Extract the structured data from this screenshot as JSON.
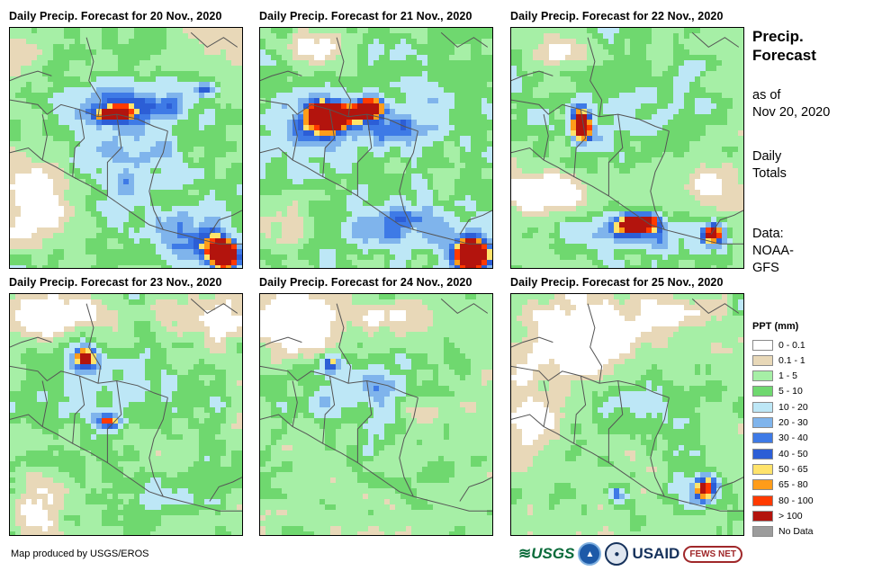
{
  "panels": [
    {
      "title": "Daily Precip. Forecast for 20 Nov., 2020"
    },
    {
      "title": "Daily Precip. Forecast for 21 Nov., 2020"
    },
    {
      "title": "Daily Precip. Forecast for 22 Nov., 2020"
    },
    {
      "title": "Daily Precip. Forecast for 23 Nov., 2020"
    },
    {
      "title": "Daily Precip. Forecast for 24 Nov., 2020"
    },
    {
      "title": "Daily Precip. Forecast for 25 Nov., 2020"
    }
  ],
  "sidebar": {
    "title_line1": "Precip.",
    "title_line2": "Forecast",
    "asof_line1": "as of",
    "asof_line2": "Nov 20, 2020",
    "daily_line1": "Daily",
    "daily_line2": "Totals",
    "data_line1": "Data:",
    "data_line2": "NOAA-",
    "data_line3": "GFS"
  },
  "legend": {
    "title": "PPT (mm)",
    "items": [
      {
        "label": "0 - 0.1",
        "color": "#ffffff"
      },
      {
        "label": "0.1 - 1",
        "color": "#e8d8b8"
      },
      {
        "label": "1 - 5",
        "color": "#a6efa6"
      },
      {
        "label": "5 - 10",
        "color": "#6fd86f"
      },
      {
        "label": "10 - 20",
        "color": "#bde7f6"
      },
      {
        "label": "20 - 30",
        "color": "#7fb4ec"
      },
      {
        "label": "30 - 40",
        "color": "#3e7ae6"
      },
      {
        "label": "40 - 50",
        "color": "#2c5ed6"
      },
      {
        "label": "50 - 65",
        "color": "#ffe36b"
      },
      {
        "label": "65 - 80",
        "color": "#ff9c1a"
      },
      {
        "label": "80 - 100",
        "color": "#ff3a00"
      },
      {
        "label": "> 100",
        "color": "#b3140d"
      },
      {
        "label": "No Data",
        "color": "#9c9c9c"
      }
    ]
  },
  "footer": {
    "credit": "Map produced by USGS/EROS",
    "logo_usgs": "USGS",
    "logo_usaid": "USAID",
    "logo_fews": "FEWS NET"
  }
}
